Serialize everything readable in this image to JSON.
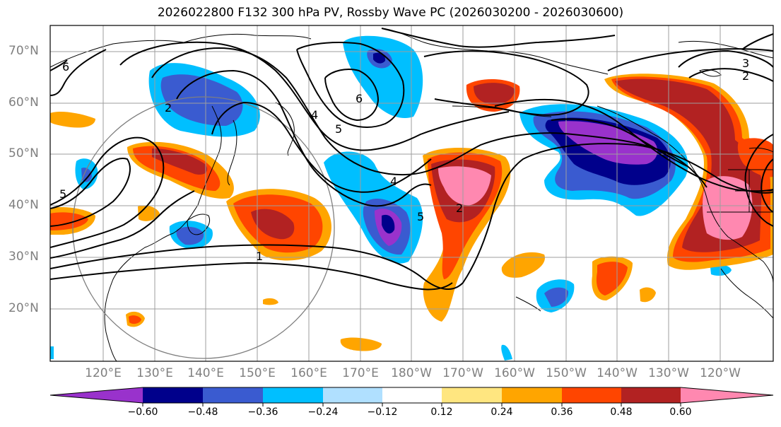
{
  "title": "2026022800 F132 300 hPa PV, Rossby Wave PC (2026030200 - 2026030600)",
  "lat_labels": [
    "70°N",
    "60°N",
    "50°N",
    "40°N",
    "30°N",
    "20°N"
  ],
  "lon_labels": [
    "120°E",
    "130°E",
    "140°E",
    "150°E",
    "160°E",
    "170°E",
    "180°W",
    "170°W",
    "160°W",
    "150°W",
    "140°W",
    "130°W",
    "120°W"
  ],
  "contour_labels": [
    "6",
    "2",
    "4",
    "5",
    "1",
    "6",
    "4",
    "5",
    "2",
    "5",
    "3",
    "2"
  ],
  "colorbar": {
    "ticks": [
      "−0.60",
      "−0.48",
      "−0.36",
      "−0.24",
      "−0.12",
      "0.12",
      "0.24",
      "0.36",
      "0.48",
      "0.60"
    ],
    "colors": [
      "#9932cc",
      "#00008b",
      "#3a5bd0",
      "#00bfff",
      "#b0e0ff",
      "#ffffff",
      "#ffe680",
      "#ffa500",
      "#ff4500",
      "#b22222",
      "#ff88b0"
    ]
  },
  "colors": {
    "neg_purple": "#9932cc",
    "neg_navy": "#00008b",
    "neg_blue": "#3a5bd0",
    "neg_sky": "#00bfff",
    "neg_light": "#b0e0ff",
    "pos_yellow": "#ffe680",
    "pos_orange": "#ffa500",
    "pos_red": "#ff4500",
    "pos_dark": "#b22222",
    "pos_pink": "#ff88b0",
    "grid": "#9e9e9e",
    "label_gray": "#7f7f7f"
  }
}
